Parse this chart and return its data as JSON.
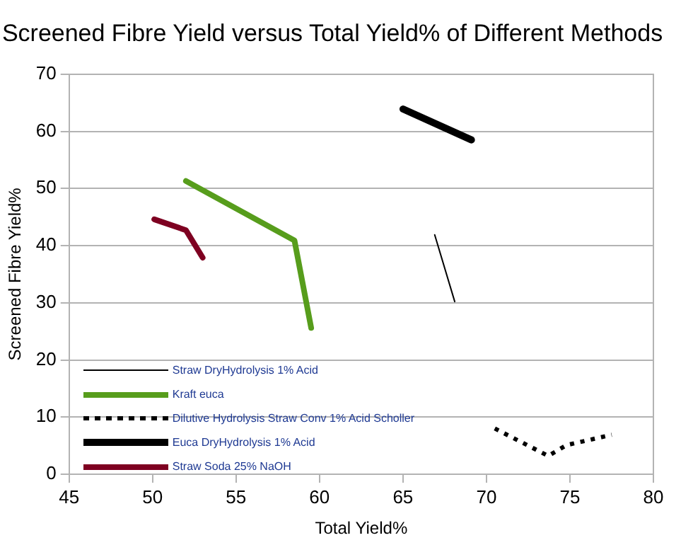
{
  "chart_data": {
    "type": "line",
    "title": "Screened Fibre Yield versus Total Yield% of Different Methods",
    "xlabel": "Total Yield%",
    "ylabel": "Screened Fibre Yield%",
    "xlim": [
      45,
      80
    ],
    "xticks": [
      45,
      50,
      55,
      60,
      65,
      70,
      75,
      80
    ],
    "ylim": [
      0,
      70
    ],
    "yticks": [
      0,
      10,
      20,
      30,
      40,
      50,
      60,
      70
    ],
    "grid": "y",
    "legend": "bottom left",
    "marker": "none",
    "series": [
      {
        "name": "Straw DryHydrolysis  1% Acid",
        "color": "#000000",
        "x": [
          66.9,
          68.1
        ],
        "values": [
          41.9,
          30.2
        ]
      },
      {
        "name": "Kraft euca",
        "color": "#579d1c",
        "x": [
          52.0,
          58.5,
          59.5
        ],
        "values": [
          51.3,
          40.9,
          25.6
        ]
      },
      {
        "name": "Dilutive Hydrolysis Straw Conv 1% Acid Scholler",
        "color": "#000000",
        "line_style": "dotted",
        "x": [
          70.5,
          73.7,
          74.8,
          77.5
        ],
        "values": [
          8.0,
          3.2,
          5.1,
          6.9
        ]
      },
      {
        "name": "Euca DryHydrolysis  1% Acid",
        "color": "#000000",
        "x": [
          65.0,
          69.1
        ],
        "values": [
          63.9,
          58.5
        ]
      },
      {
        "name": "Straw Soda  25% NaOH",
        "color": "#7e0021",
        "x": [
          50.1,
          52.0,
          53.0
        ],
        "values": [
          44.6,
          42.7,
          37.9
        ]
      }
    ]
  }
}
